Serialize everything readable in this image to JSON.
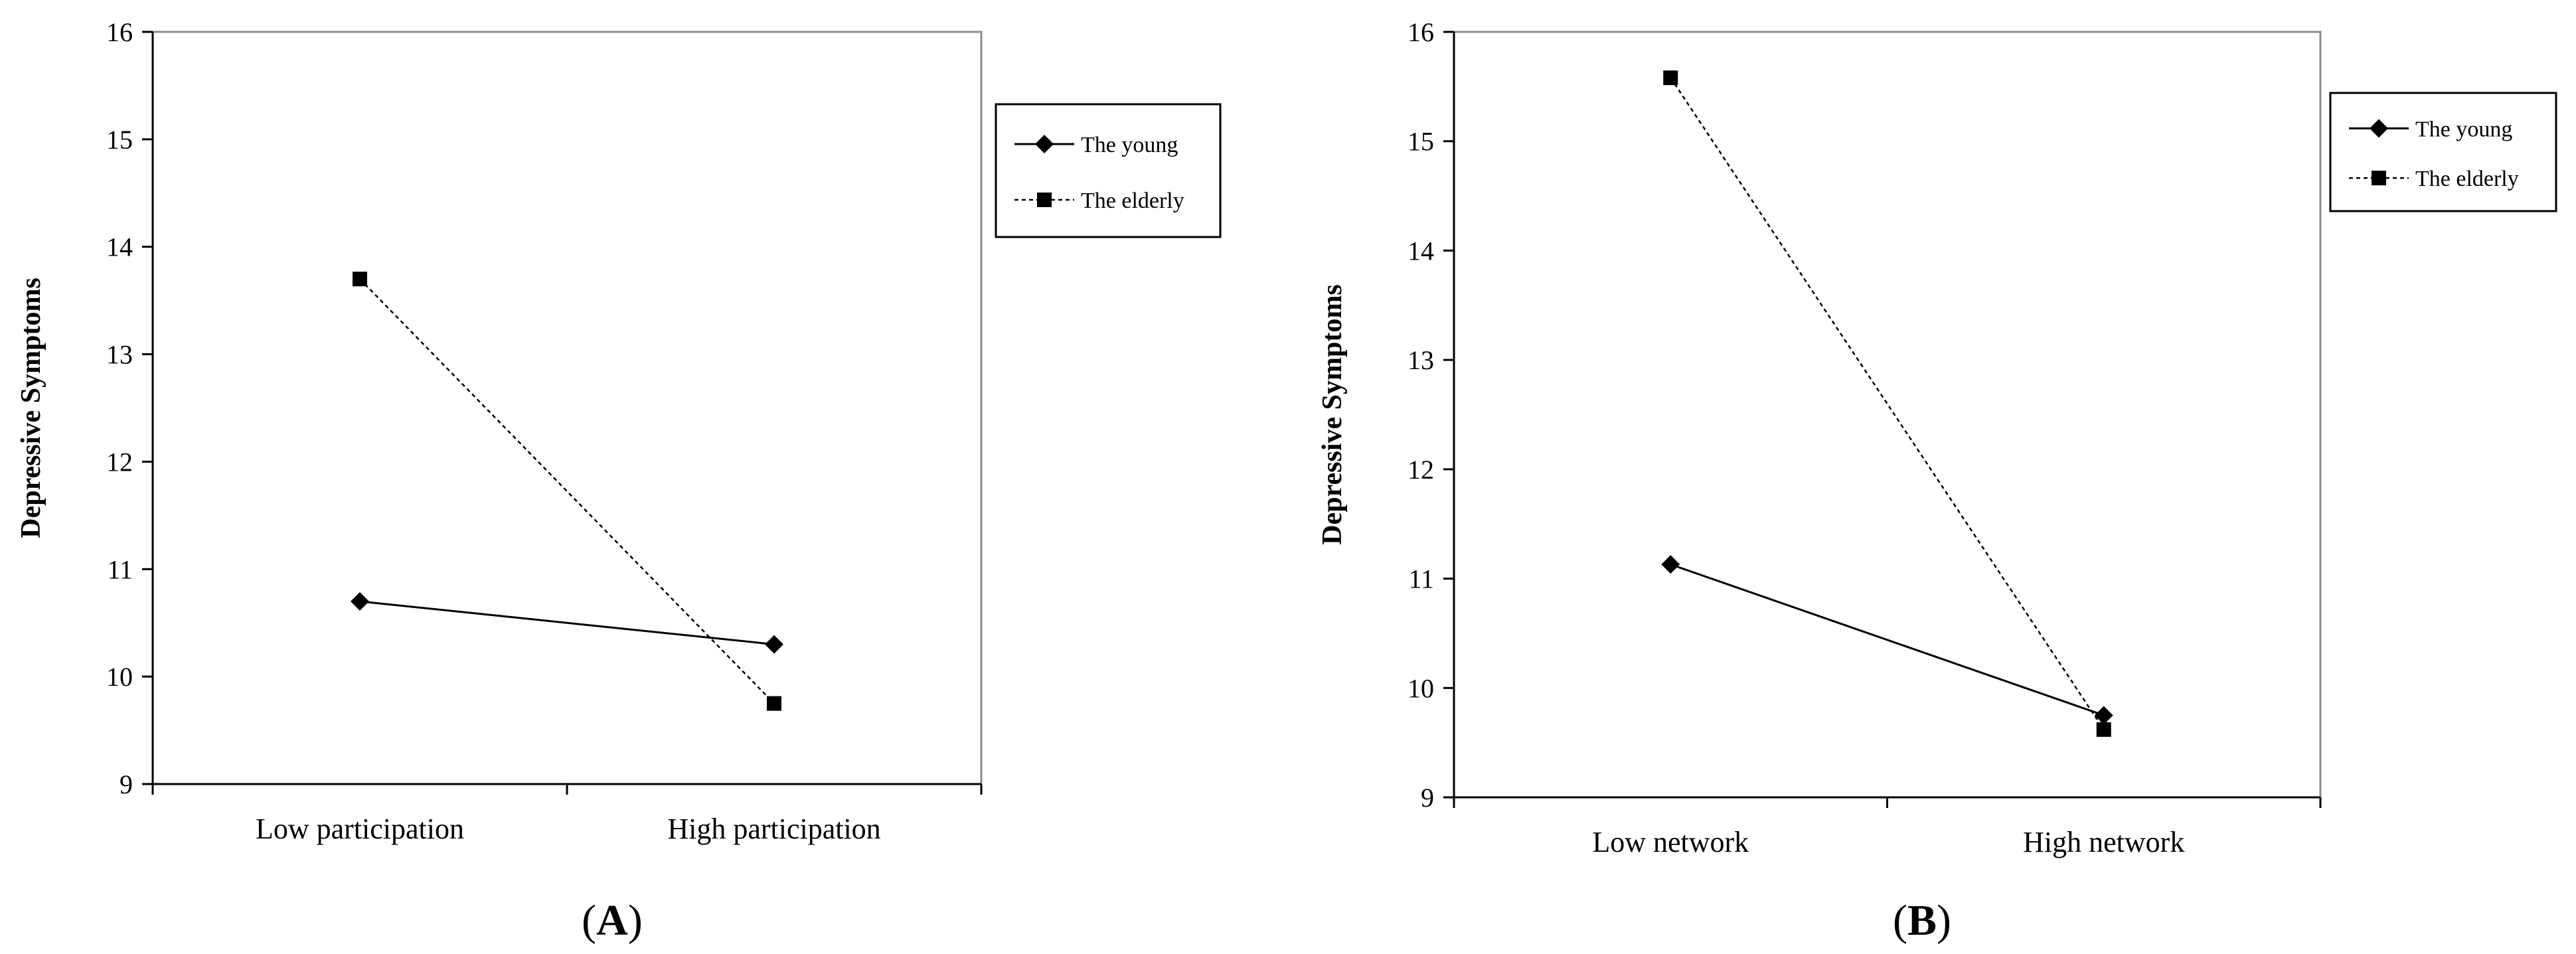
{
  "chart_data": [
    {
      "type": "line",
      "panel_label": "A",
      "categories": [
        "Low participation",
        "High participation"
      ],
      "ylabel": "Depressive Symptoms",
      "ylim": [
        9,
        16
      ],
      "yticks": [
        "9",
        "10",
        "11",
        "12",
        "13",
        "14",
        "15",
        "16"
      ],
      "legend_position": "right",
      "series": [
        {
          "name": "The young",
          "marker": "diamond",
          "line": "solid",
          "values": [
            10.7,
            10.3
          ]
        },
        {
          "name": "The elderly",
          "marker": "square",
          "line": "dashed",
          "values": [
            13.7,
            9.75
          ]
        }
      ]
    },
    {
      "type": "line",
      "panel_label": "B",
      "categories": [
        "Low network",
        "High network"
      ],
      "ylabel": "Depressive Symptoms",
      "ylim": [
        9,
        16
      ],
      "yticks": [
        "9",
        "10",
        "11",
        "12",
        "13",
        "14",
        "15",
        "16"
      ],
      "legend_position": "right",
      "series": [
        {
          "name": "The young",
          "marker": "diamond",
          "line": "solid",
          "values": [
            11.13,
            9.75
          ]
        },
        {
          "name": "The elderly",
          "marker": "square",
          "line": "dashed",
          "values": [
            15.58,
            9.62
          ]
        }
      ]
    }
  ]
}
